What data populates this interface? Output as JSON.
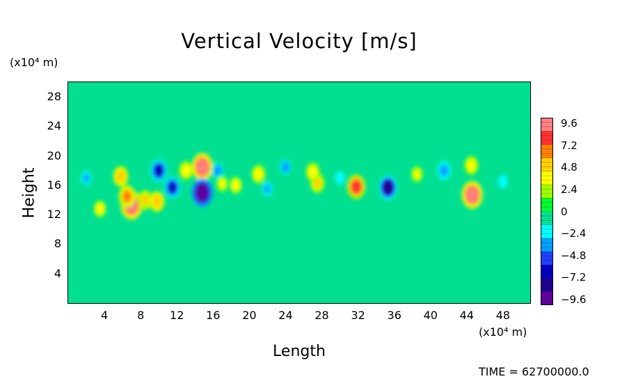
{
  "chart_data": {
    "type": "heatmap",
    "title": "Vertical Velocity [m/s]",
    "xlabel": "Length",
    "ylabel": "Height",
    "x_unit": "(x10⁴ m)",
    "y_unit": "(x10⁴ m)",
    "xlim": [
      0,
      51
    ],
    "ylim": [
      0,
      30
    ],
    "x_ticks": [
      "4",
      "8",
      "12",
      "16",
      "20",
      "24",
      "28",
      "32",
      "36",
      "40",
      "44",
      "48"
    ],
    "y_ticks": [
      "4",
      "8",
      "12",
      "16",
      "20",
      "24",
      "28"
    ],
    "colorbar": {
      "labels": [
        "9.6",
        "7.2",
        "4.8",
        "2.4",
        "0",
        "−2.4",
        "−4.8",
        "−7.2",
        "−9.6"
      ],
      "range": [
        -9.6,
        9.6
      ],
      "colors": [
        "#ff8080",
        "#ff3030",
        "#ff8000",
        "#ffd000",
        "#ffff00",
        "#a0ff00",
        "#00ff30",
        "#00e090",
        "#00ffff",
        "#00a0ff",
        "#2040ff",
        "#0000c0",
        "#200090",
        "#6000a0"
      ]
    },
    "background_value": 0,
    "features": [
      {
        "x": 14.8,
        "y": 18.5,
        "value": 8.5
      },
      {
        "x": 14.8,
        "y": 15.0,
        "value": -9.0
      },
      {
        "x": 7.0,
        "y": 13.3,
        "value": 9.0
      },
      {
        "x": 44.6,
        "y": 14.7,
        "value": 8.5
      },
      {
        "x": 31.8,
        "y": 15.8,
        "value": 7.0
      },
      {
        "x": 35.3,
        "y": 15.7,
        "value": -7.0
      },
      {
        "x": 10.0,
        "y": 18.0,
        "value": -6.0
      },
      {
        "x": 11.5,
        "y": 15.7,
        "value": -5.5
      },
      {
        "x": 5.8,
        "y": 17.2,
        "value": 5.0
      },
      {
        "x": 27.5,
        "y": 16.3,
        "value": 4.5
      },
      {
        "x": 27.0,
        "y": 17.8,
        "value": 4.0
      },
      {
        "x": 44.5,
        "y": 18.7,
        "value": 4.0
      },
      {
        "x": 41.5,
        "y": 18.0,
        "value": -4.0
      },
      {
        "x": 21.0,
        "y": 17.5,
        "value": 4.0
      },
      {
        "x": 18.5,
        "y": 16.0,
        "value": 3.5
      },
      {
        "x": 24.0,
        "y": 18.5,
        "value": -3.5
      },
      {
        "x": 8.5,
        "y": 14.0,
        "value": 4.5
      },
      {
        "x": 3.5,
        "y": 12.8,
        "value": 3.5
      },
      {
        "x": 2.0,
        "y": 17.0,
        "value": -3.0
      },
      {
        "x": 16.5,
        "y": 18.0,
        "value": -3.5
      },
      {
        "x": 13.0,
        "y": 18.0,
        "value": 4.0
      },
      {
        "x": 22.0,
        "y": 15.5,
        "value": -3.0
      },
      {
        "x": 38.5,
        "y": 17.5,
        "value": 3.0
      },
      {
        "x": 30.0,
        "y": 17.0,
        "value": -2.5
      },
      {
        "x": 48.0,
        "y": 16.5,
        "value": -2.5
      },
      {
        "x": 6.5,
        "y": 14.5,
        "value": 6.0
      },
      {
        "x": 9.8,
        "y": 13.8,
        "value": 5.0
      },
      {
        "x": 17.0,
        "y": 16.2,
        "value": 3.0
      }
    ],
    "grid": false
  },
  "footer": {
    "time_label": "TIME =  62700000.0"
  }
}
